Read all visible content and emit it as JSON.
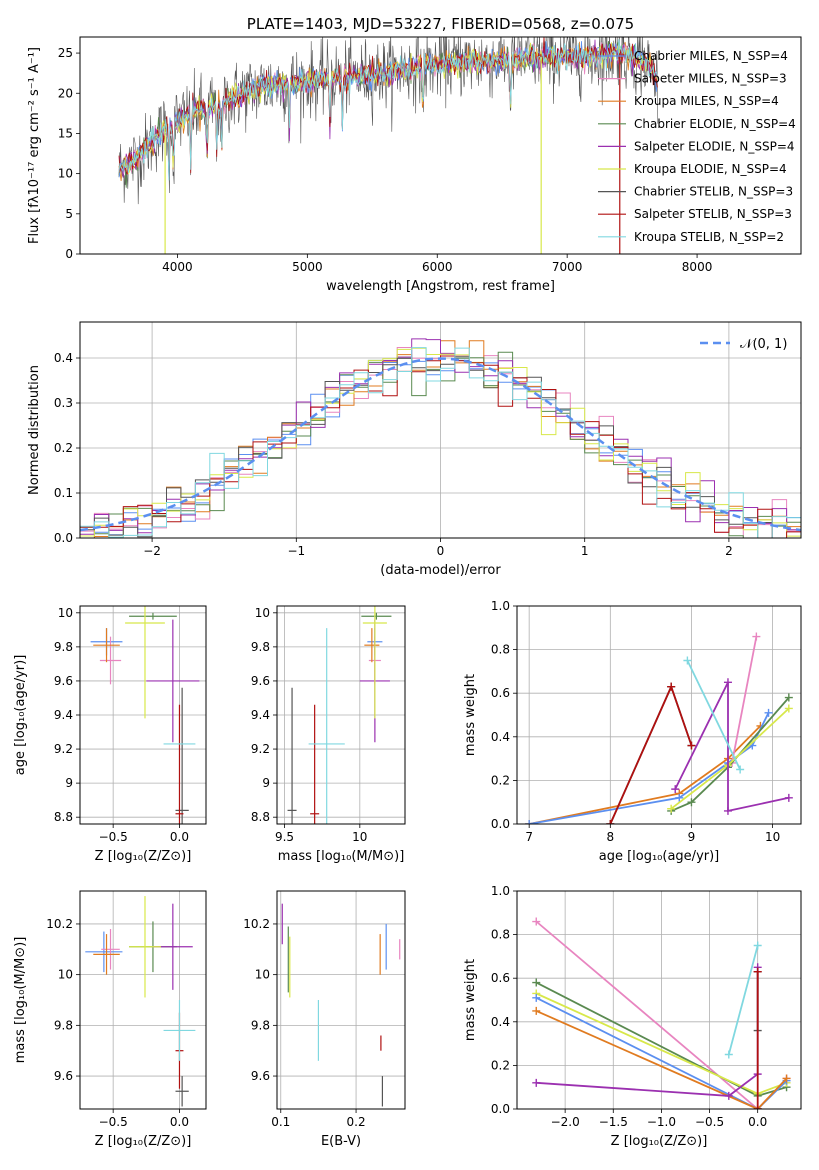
{
  "colors": {
    "chabrier_miles": "#5b8ff0",
    "salpeter_miles": "#e885c0",
    "kroupa_miles": "#e07b20",
    "chabrier_elodie": "#5a8a50",
    "salpeter_elodie": "#9b30b0",
    "kroupa_elodie": "#d8e84a",
    "chabrier_stelib": "#555555",
    "salpeter_stelib": "#b01010",
    "kroupa_stelib": "#80d8e0"
  },
  "chart_data": [
    {
      "id": "spectrum",
      "type": "line",
      "title": "PLATE=1403, MJD=53227, FIBERID=0568, z=0.075",
      "xlabel": "wavelength [Angstrom, rest frame]",
      "ylabel": "Flux [fλ10⁻¹⁷ erg cm⁻² s⁻¹ A⁻¹]",
      "xlim": [
        3250,
        8800
      ],
      "ylim": [
        0,
        27
      ],
      "xticks": [
        4000,
        5000,
        6000,
        7000,
        8000
      ],
      "yticks": [
        0,
        5,
        10,
        15,
        20,
        25
      ],
      "grid": false,
      "legend_position": "right",
      "legend": [
        {
          "label": "Chabrier MILES, N_SSP=4",
          "color": "chabrier_miles"
        },
        {
          "label": "Salpeter MILES, N_SSP=3",
          "color": "salpeter_miles"
        },
        {
          "label": "Kroupa MILES, N_SSP=4",
          "color": "kroupa_miles"
        },
        {
          "label": "Chabrier ELODIE, N_SSP=4",
          "color": "chabrier_elodie"
        },
        {
          "label": "Salpeter ELODIE, N_SSP=4",
          "color": "salpeter_elodie"
        },
        {
          "label": "Kroupa ELODIE, N_SSP=4",
          "color": "kroupa_elodie"
        },
        {
          "label": "Chabrier STELIB, N_SSP=3",
          "color": "chabrier_stelib"
        },
        {
          "label": "Salpeter STELIB, N_SSP=3",
          "color": "salpeter_stelib"
        },
        {
          "label": "Kroupa STELIB, N_SSP=2",
          "color": "kroupa_stelib"
        }
      ],
      "continuum": {
        "x": [
          3550,
          3700,
          3800,
          3900,
          4000,
          4100,
          4300,
          4500,
          4700,
          5000,
          5300,
          5600,
          5900,
          6200,
          6500,
          6800,
          7100,
          7400,
          7600,
          7700
        ],
        "y": [
          10.5,
          12.0,
          14.0,
          15.5,
          16.5,
          17.5,
          18.5,
          20.0,
          21.0,
          21.5,
          22.0,
          22.5,
          23.5,
          24.0,
          24.0,
          24.5,
          24.5,
          25.0,
          24.0,
          21.5
        ]
      },
      "drops": [
        {
          "x": 3905,
          "y": 0,
          "color": "kroupa_elodie"
        },
        {
          "x": 6800,
          "y": 0,
          "color": "kroupa_elodie"
        },
        {
          "x": 7405,
          "y": 0,
          "color": "salpeter_stelib"
        }
      ]
    },
    {
      "id": "residual_hist",
      "type": "line",
      "xlabel": "(data-model)/error",
      "ylabel": "Normed distribution",
      "xlim": [
        -2.5,
        2.5
      ],
      "ylim": [
        0,
        0.48
      ],
      "xticks": [
        -2,
        -1,
        0,
        1,
        2
      ],
      "xtick_labels": [
        "−2",
        "−1",
        "0",
        "1",
        "2"
      ],
      "yticks": [
        0.0,
        0.1,
        0.2,
        0.3,
        0.4
      ],
      "ytick_labels": [
        "0.0",
        "0.1",
        "0.2",
        "0.3",
        "0.4"
      ],
      "grid": true,
      "legend_position": "top-right",
      "reference_label": "𝒩(0, 1)",
      "reference_color": "#5b8ff0",
      "bin_width": 0.1
    },
    {
      "id": "age_vs_Z",
      "type": "scatter",
      "xlabel": "Z [log₁₀(Z/Z⊙)]",
      "ylabel": "age  [log₁₀(age/yr)]",
      "xlim": [
        -0.75,
        0.2
      ],
      "ylim": [
        8.76,
        10.04
      ],
      "xticks": [
        -0.5,
        0.0
      ],
      "xtick_labels": [
        "−0.5",
        "0.0"
      ],
      "yticks": [
        8.8,
        9.0,
        9.2,
        9.4,
        9.6,
        9.8,
        10.0
      ],
      "grid": true,
      "points": [
        {
          "color": "chabrier_miles",
          "x": -0.55,
          "y": 9.83,
          "xerr": 0.12,
          "yerr": 0.08
        },
        {
          "color": "salpeter_miles",
          "x": -0.52,
          "y": 9.72,
          "xerr": 0.08,
          "yerr": 0.14
        },
        {
          "color": "kroupa_miles",
          "x": -0.55,
          "y": 9.81,
          "xerr": 0.1,
          "yerr": 0.1
        },
        {
          "color": "chabrier_elodie",
          "x": -0.2,
          "y": 9.98,
          "xerr": 0.18,
          "yerr": 0.02
        },
        {
          "color": "salpeter_elodie",
          "x": -0.05,
          "y": 9.6,
          "xerr": 0.2,
          "yerr": 0.36
        },
        {
          "color": "kroupa_elodie",
          "x": -0.26,
          "y": 9.94,
          "xerr": 0.15,
          "yerr": 0.56
        },
        {
          "color": "chabrier_stelib",
          "x": 0.02,
          "y": 8.84,
          "xerr": 0.05,
          "yerr": 0.72
        },
        {
          "color": "salpeter_stelib",
          "x": 0.0,
          "y": 8.82,
          "xerr": 0.03,
          "yerr": 0.64
        },
        {
          "color": "kroupa_stelib",
          "x": 0.0,
          "y": 9.23,
          "xerr": 0.12,
          "yerr": 0.0
        }
      ]
    },
    {
      "id": "age_vs_mass",
      "type": "scatter",
      "xlabel": "mass [log₁₀(M/M⊙)]",
      "xlim": [
        9.45,
        10.3
      ],
      "ylim": [
        8.76,
        10.04
      ],
      "xticks": [
        9.5,
        10.0
      ],
      "yticks": [
        8.8,
        9.0,
        9.2,
        9.4,
        9.6,
        9.8,
        10.0
      ],
      "grid": true,
      "points": [
        {
          "color": "chabrier_miles",
          "x": 10.1,
          "y": 9.83,
          "xerr": 0.05,
          "yerr": 0.08
        },
        {
          "color": "salpeter_miles",
          "x": 10.1,
          "y": 9.72,
          "xerr": 0.04,
          "yerr": 0.14
        },
        {
          "color": "kroupa_miles",
          "x": 10.08,
          "y": 9.81,
          "xerr": 0.05,
          "yerr": 0.1
        },
        {
          "color": "chabrier_elodie",
          "x": 10.11,
          "y": 9.98,
          "xerr": 0.1,
          "yerr": 0.02
        },
        {
          "color": "salpeter_elodie",
          "x": 10.1,
          "y": 9.6,
          "xerr": 0.1,
          "yerr": 0.36
        },
        {
          "color": "kroupa_elodie",
          "x": 10.1,
          "y": 9.94,
          "xerr": 0.08,
          "yerr": 0.56
        },
        {
          "color": "chabrier_stelib",
          "x": 9.55,
          "y": 8.84,
          "xerr": 0.03,
          "yerr": 0.72
        },
        {
          "color": "salpeter_stelib",
          "x": 9.7,
          "y": 8.82,
          "xerr": 0.03,
          "yerr": 0.64
        },
        {
          "color": "kroupa_stelib",
          "x": 9.78,
          "y": 9.23,
          "xerr": 0.12,
          "yerr": 0.68
        }
      ]
    },
    {
      "id": "weight_vs_age",
      "type": "line",
      "xlabel": "age  [log₁₀(age/yr)]",
      "ylabel": "mass weight",
      "xlim": [
        6.85,
        10.35
      ],
      "ylim": [
        0,
        1.0
      ],
      "xticks": [
        7,
        8,
        9,
        10
      ],
      "yticks": [
        0.0,
        0.2,
        0.4,
        0.6,
        0.8,
        1.0
      ],
      "ytick_labels": [
        "0.0",
        "0.2",
        "0.4",
        "0.6",
        "0.8",
        "1.0"
      ],
      "grid": true,
      "series": [
        {
          "color": "kroupa_miles",
          "x": [
            7.0,
            8.85,
            9.45,
            9.85
          ],
          "y": [
            0.0,
            0.14,
            0.3,
            0.45
          ]
        },
        {
          "color": "chabrier_miles",
          "x": [
            7.0,
            8.85,
            9.45,
            9.75,
            9.95
          ],
          "y": [
            0.0,
            0.12,
            0.28,
            0.36,
            0.51
          ]
        },
        {
          "color": "salpeter_miles",
          "x": [
            9.5,
            9.8
          ],
          "y": [
            0.28,
            0.86
          ]
        },
        {
          "color": "chabrier_elodie",
          "x": [
            8.75,
            9.0,
            9.45,
            10.2
          ],
          "y": [
            0.06,
            0.1,
            0.26,
            0.58
          ]
        },
        {
          "color": "kroupa_elodie",
          "x": [
            8.75,
            9.45,
            10.2
          ],
          "y": [
            0.07,
            0.27,
            0.53
          ]
        },
        {
          "color": "salpeter_elodie",
          "x": [
            8.8,
            9.45,
            9.45,
            10.2
          ],
          "y": [
            0.16,
            0.65,
            0.06,
            0.12
          ]
        },
        {
          "color": "chabrier_stelib",
          "x": [
            8.0,
            8.75,
            9.0
          ],
          "y": [
            0.0,
            0.63,
            0.36
          ]
        },
        {
          "color": "salpeter_stelib",
          "x": [
            8.0,
            8.75,
            9.0
          ],
          "y": [
            0.0,
            0.63,
            0.36
          ]
        },
        {
          "color": "kroupa_stelib",
          "x": [
            8.95,
            9.6
          ],
          "y": [
            0.75,
            0.25
          ]
        }
      ]
    },
    {
      "id": "mass_vs_Z",
      "type": "scatter",
      "xlabel": "Z [log₁₀(Z/Z⊙)]",
      "ylabel": "mass [log₁₀(M/M⊙)]",
      "xlim": [
        -0.75,
        0.2
      ],
      "ylim": [
        9.47,
        10.33
      ],
      "xticks": [
        -0.5,
        0.0
      ],
      "xtick_labels": [
        "−0.5",
        "0.0"
      ],
      "yticks": [
        9.6,
        9.8,
        10.0,
        10.2
      ],
      "grid": true,
      "points": [
        {
          "color": "chabrier_miles",
          "x": -0.57,
          "y": 10.09,
          "xerr": 0.14,
          "yerr": 0.08
        },
        {
          "color": "salpeter_miles",
          "x": -0.52,
          "y": 10.1,
          "xerr": 0.07,
          "yerr": 0.08
        },
        {
          "color": "kroupa_miles",
          "x": -0.55,
          "y": 10.08,
          "xerr": 0.1,
          "yerr": 0.08
        },
        {
          "color": "chabrier_elodie",
          "x": -0.2,
          "y": 10.11,
          "xerr": 0.18,
          "yerr": 0.1
        },
        {
          "color": "salpeter_elodie",
          "x": -0.05,
          "y": 10.11,
          "xerr": 0.15,
          "yerr": 0.17
        },
        {
          "color": "kroupa_elodie",
          "x": -0.26,
          "y": 10.11,
          "xerr": 0.12,
          "yerr": 0.2
        },
        {
          "color": "chabrier_stelib",
          "x": 0.02,
          "y": 9.54,
          "xerr": 0.05,
          "yerr": 0.06
        },
        {
          "color": "salpeter_stelib",
          "x": 0.0,
          "y": 9.7,
          "xerr": 0.03,
          "yerr": 0.15
        },
        {
          "color": "kroupa_stelib",
          "x": 0.0,
          "y": 9.78,
          "xerr": 0.12,
          "yerr": 0.12
        }
      ]
    },
    {
      "id": "mass_vs_ebv",
      "type": "scatter",
      "xlabel": "E(B-V)",
      "xlim": [
        0.095,
        0.265
      ],
      "ylim": [
        9.47,
        10.33
      ],
      "xticks": [
        0.1,
        0.2
      ],
      "yticks": [
        9.6,
        9.8,
        10.0,
        10.2
      ],
      "grid": true,
      "points": [
        {
          "color": "chabrier_miles",
          "x": 0.24,
          "y": 10.11,
          "xerr": 0.0,
          "yerr": 0.09
        },
        {
          "color": "salpeter_miles",
          "x": 0.258,
          "y": 10.1,
          "xerr": 0.0,
          "yerr": 0.04
        },
        {
          "color": "kroupa_miles",
          "x": 0.232,
          "y": 10.08,
          "xerr": 0.0,
          "yerr": 0.08
        },
        {
          "color": "chabrier_elodie",
          "x": 0.11,
          "y": 10.06,
          "xerr": 0.0,
          "yerr": 0.13
        },
        {
          "color": "salpeter_elodie",
          "x": 0.102,
          "y": 10.2,
          "xerr": 0.0,
          "yerr": 0.08
        },
        {
          "color": "kroupa_elodie",
          "x": 0.112,
          "y": 10.03,
          "xerr": 0.0,
          "yerr": 0.12
        },
        {
          "color": "chabrier_stelib",
          "x": 0.235,
          "y": 9.54,
          "xerr": 0.0,
          "yerr": 0.06
        },
        {
          "color": "salpeter_stelib",
          "x": 0.233,
          "y": 9.73,
          "xerr": 0.0,
          "yerr": 0.03
        },
        {
          "color": "kroupa_stelib",
          "x": 0.15,
          "y": 9.78,
          "xerr": 0.0,
          "yerr": 0.12
        }
      ]
    },
    {
      "id": "weight_vs_Z",
      "type": "line",
      "xlabel": "Z [log₁₀(Z/Z⊙)]",
      "ylabel": "mass weight",
      "xlim": [
        -2.5,
        0.45
      ],
      "ylim": [
        0,
        1.0
      ],
      "xticks": [
        -2.0,
        -1.5,
        -1.0,
        -0.5,
        0.0
      ],
      "xtick_labels": [
        "−2.0",
        "−1.5",
        "−1.0",
        "−0.5",
        "0.0"
      ],
      "yticks": [
        0.0,
        0.2,
        0.4,
        0.6,
        0.8,
        1.0
      ],
      "ytick_labels": [
        "0.0",
        "0.2",
        "0.4",
        "0.6",
        "0.8",
        "1.0"
      ],
      "grid": true,
      "series": [
        {
          "color": "salpeter_miles",
          "x": [
            -2.3,
            0.0,
            0.3
          ],
          "y": [
            0.86,
            0.0,
            0.14
          ]
        },
        {
          "color": "chabrier_elodie",
          "x": [
            -2.3,
            0.0,
            0.3
          ],
          "y": [
            0.58,
            0.06,
            0.1
          ]
        },
        {
          "color": "kroupa_elodie",
          "x": [
            -2.3,
            0.0,
            0.3
          ],
          "y": [
            0.53,
            0.07,
            0.12
          ]
        },
        {
          "color": "chabrier_miles",
          "x": [
            -2.3,
            0.0,
            0.3
          ],
          "y": [
            0.51,
            0.0,
            0.13
          ]
        },
        {
          "color": "kroupa_miles",
          "x": [
            -2.3,
            0.0,
            0.3
          ],
          "y": [
            0.45,
            0.0,
            0.14
          ]
        },
        {
          "color": "salpeter_elodie",
          "x": [
            -2.3,
            -0.3,
            0.0,
            0.0
          ],
          "y": [
            0.12,
            0.06,
            0.16,
            0.65
          ]
        },
        {
          "color": "kroupa_stelib",
          "x": [
            -0.3,
            0.0
          ],
          "y": [
            0.25,
            0.75
          ]
        },
        {
          "color": "chabrier_stelib",
          "x": [
            0.0,
            0.0
          ],
          "y": [
            0.36,
            0.63
          ]
        },
        {
          "color": "salpeter_stelib",
          "x": [
            0.0,
            0.0
          ],
          "y": [
            0.0,
            0.63
          ]
        }
      ]
    }
  ]
}
